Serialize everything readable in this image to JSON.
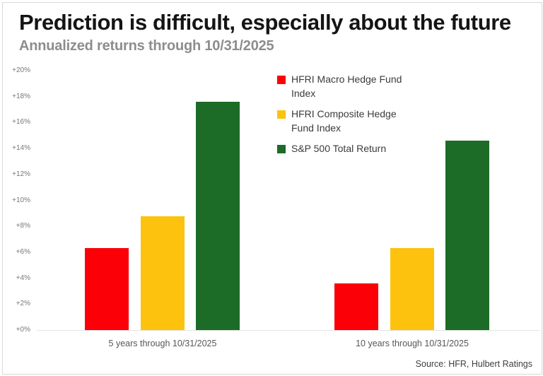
{
  "chart_data": {
    "type": "bar",
    "title": "Prediction is difficult, especially about the future",
    "subtitle": "Annualized returns through 10/31/2025",
    "categories": [
      "5 years through 10/31/2025",
      "10 years through 10/31/2025"
    ],
    "series": [
      {
        "name": "HFRI Macro Hedge Fund Index",
        "color": "#fb0007",
        "values": [
          6.3,
          3.6
        ]
      },
      {
        "name": "HFRI Composite Hedge Fund Index",
        "color": "#fdc20d",
        "values": [
          8.8,
          6.3
        ]
      },
      {
        "name": "S&P 500 Total Return",
        "color": "#1c6b27",
        "values": [
          17.6,
          14.6
        ]
      }
    ],
    "ylabel": "",
    "xlabel": "",
    "ylim": [
      0,
      20
    ],
    "yticks": [
      0,
      2,
      4,
      6,
      8,
      10,
      12,
      14,
      16,
      18,
      20
    ],
    "ytick_labels": [
      "+0%",
      "+2%",
      "+4%",
      "+6%",
      "+8%",
      "+10%",
      "+12%",
      "+14%",
      "+16%",
      "+18%",
      "+20%"
    ],
    "grid": false,
    "legend_position": "upper-middle",
    "source": "Source: HFR, Hulbert Ratings"
  }
}
